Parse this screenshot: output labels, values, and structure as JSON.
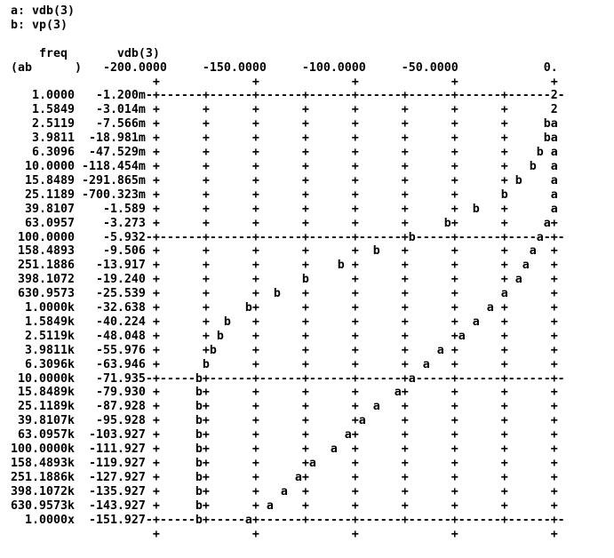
{
  "window": {
    "background": "#ffffff",
    "foreground": "#000000"
  },
  "header": {
    "legend_a": "a: vdb(3)",
    "legend_b": "b: vp(3)",
    "col_freq": "freq",
    "col_value": "vdb(3)",
    "row_label": "(ab      )"
  },
  "axis": {
    "labels": [
      "-200.0000",
      "-150.0000",
      "-100.0000",
      "-50.0000",
      "0."
    ],
    "label_text_cols": [
      14,
      28,
      42,
      56,
      76
    ],
    "tick_plot_cols": [
      0,
      14,
      28,
      42,
      56
    ]
  },
  "chart_data": {
    "type": "line",
    "title": "",
    "xlabel": "freq",
    "xscale": "log",
    "ylabel": "vdb(3)",
    "axis_range": [
      -200,
      0
    ],
    "series": [
      {
        "mark": "a",
        "name": "vdb(3)"
      },
      {
        "mark": "b",
        "name": "vp(3)"
      }
    ],
    "overlap_char": "2",
    "layout": {
      "line_width": 79,
      "freq_right_col": 9,
      "value_right_col": 19,
      "plot_text_col0": 21,
      "plot_cols": 57,
      "minor_tick_step": 7,
      "grid_dash_start": 20,
      "grid_dash_end": 78
    },
    "rows": [
      {
        "freq": "1.0000",
        "vdb": "-1.200m",
        "a_col": 56,
        "b_col": 56,
        "grid": true
      },
      {
        "freq": "1.5849",
        "vdb": "-3.014m",
        "a_col": 56,
        "b_col": 56,
        "grid": false
      },
      {
        "freq": "2.5119",
        "vdb": "-7.566m",
        "a_col": 56,
        "b_col": 55,
        "grid": false
      },
      {
        "freq": "3.9811",
        "vdb": "-18.981m",
        "a_col": 56,
        "b_col": 55,
        "grid": false
      },
      {
        "freq": "6.3096",
        "vdb": "-47.529m",
        "a_col": 56,
        "b_col": 54,
        "grid": false
      },
      {
        "freq": "10.0000",
        "vdb": "-118.454m",
        "a_col": 56,
        "b_col": 53,
        "grid": false
      },
      {
        "freq": "15.8489",
        "vdb": "-291.865m",
        "a_col": 56,
        "b_col": 51,
        "grid": false
      },
      {
        "freq": "25.1189",
        "vdb": "-700.323m",
        "a_col": 56,
        "b_col": 49,
        "grid": false
      },
      {
        "freq": "39.8107",
        "vdb": "-1.589",
        "a_col": 56,
        "b_col": 45,
        "grid": false
      },
      {
        "freq": "63.0957",
        "vdb": "-3.273",
        "a_col": 55,
        "b_col": 41,
        "grid": false
      },
      {
        "freq": "100.0000",
        "vdb": "-5.932",
        "a_col": 54,
        "b_col": 36,
        "grid": true
      },
      {
        "freq": "158.4893",
        "vdb": "-9.506",
        "a_col": 53,
        "b_col": 31,
        "grid": false
      },
      {
        "freq": "251.1886",
        "vdb": "-13.917",
        "a_col": 52,
        "b_col": 26,
        "grid": false
      },
      {
        "freq": "398.1072",
        "vdb": "-19.240",
        "a_col": 51,
        "b_col": 21,
        "grid": false
      },
      {
        "freq": "630.9573",
        "vdb": "-25.539",
        "a_col": 49,
        "b_col": 17,
        "grid": false
      },
      {
        "freq": "1.0000k",
        "vdb": "-32.638",
        "a_col": 47,
        "b_col": 13,
        "grid": false
      },
      {
        "freq": "1.5849k",
        "vdb": "-40.224",
        "a_col": 45,
        "b_col": 10,
        "grid": false
      },
      {
        "freq": "2.5119k",
        "vdb": "-48.048",
        "a_col": 43,
        "b_col": 9,
        "grid": false
      },
      {
        "freq": "3.9811k",
        "vdb": "-55.976",
        "a_col": 40,
        "b_col": 8,
        "grid": false
      },
      {
        "freq": "6.3096k",
        "vdb": "-63.946",
        "a_col": 38,
        "b_col": 7,
        "grid": false
      },
      {
        "freq": "10.0000k",
        "vdb": "-71.935",
        "a_col": 36,
        "b_col": 6,
        "grid": true
      },
      {
        "freq": "15.8489k",
        "vdb": "-79.930",
        "a_col": 34,
        "b_col": 6,
        "grid": false
      },
      {
        "freq": "25.1189k",
        "vdb": "-87.928",
        "a_col": 31,
        "b_col": 6,
        "grid": false
      },
      {
        "freq": "39.8107k",
        "vdb": "-95.928",
        "a_col": 29,
        "b_col": 6,
        "grid": false
      },
      {
        "freq": "63.0957k",
        "vdb": "-103.927",
        "a_col": 27,
        "b_col": 6,
        "grid": false
      },
      {
        "freq": "100.0000k",
        "vdb": "-111.927",
        "a_col": 25,
        "b_col": 6,
        "grid": false
      },
      {
        "freq": "158.4893k",
        "vdb": "-119.927",
        "a_col": 22,
        "b_col": 6,
        "grid": false
      },
      {
        "freq": "251.1886k",
        "vdb": "-127.927",
        "a_col": 20,
        "b_col": 6,
        "grid": false
      },
      {
        "freq": "398.1072k",
        "vdb": "-135.927",
        "a_col": 18,
        "b_col": 6,
        "grid": false
      },
      {
        "freq": "630.9573k",
        "vdb": "-143.927",
        "a_col": 16,
        "b_col": 6,
        "grid": false
      },
      {
        "freq": "1.0000x",
        "vdb": "-151.927",
        "a_col": 13,
        "b_col": 6,
        "grid": true
      }
    ]
  }
}
